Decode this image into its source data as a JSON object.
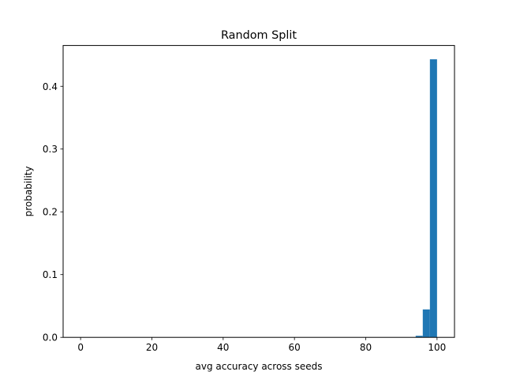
{
  "colors": {
    "bar": "#1f77b4",
    "axes": "#000000",
    "background": "#ffffff"
  },
  "chart_data": {
    "type": "bar",
    "title": "Random Split",
    "xlabel": "avg accuracy across seeds",
    "ylabel": "probability",
    "xlim": [
      -4.9,
      104.9
    ],
    "ylim": [
      0,
      0.465
    ],
    "xticks": [
      0,
      20,
      40,
      60,
      80,
      100
    ],
    "yticks": [
      0.0,
      0.1,
      0.2,
      0.3,
      0.4
    ],
    "ytick_labels": [
      "0.0",
      "0.1",
      "0.2",
      "0.3",
      "0.4"
    ],
    "grid": false,
    "legend": "none",
    "bins": [
      {
        "x0": 94.0,
        "x1": 96.0,
        "value": 0.0025
      },
      {
        "x0": 96.0,
        "x1": 98.0,
        "value": 0.0445
      },
      {
        "x0": 98.0,
        "x1": 100.0,
        "value": 0.443
      }
    ]
  }
}
